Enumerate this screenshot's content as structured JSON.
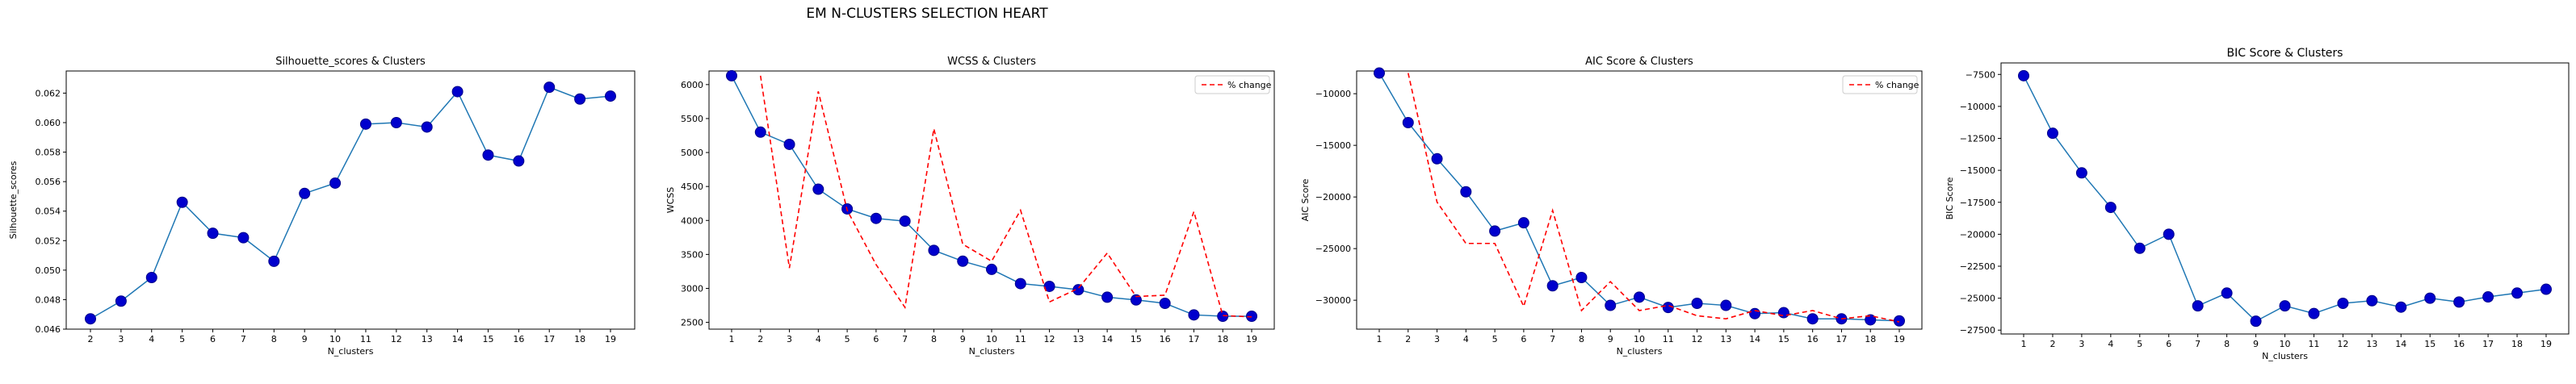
{
  "suptitle": "EM N-CLUSTERS SELECTION HEART",
  "colors": {
    "line": "#1f77b4",
    "marker": "#0000cd",
    "marker_edge": "#00008b",
    "pct": "#ff0000",
    "axis": "#000000"
  },
  "chart_data": [
    {
      "type": "line",
      "title": "Silhouette_scores & Clusters",
      "xlabel": "N_clusters",
      "ylabel": "Silhouette_scores",
      "x": [
        2,
        3,
        4,
        5,
        6,
        7,
        8,
        9,
        10,
        11,
        12,
        13,
        14,
        15,
        16,
        17,
        18,
        19
      ],
      "xticks": [
        "2",
        "3",
        "4",
        "5",
        "6",
        "7",
        "8",
        "9",
        "10",
        "11",
        "12",
        "13",
        "14",
        "15",
        "16",
        "17",
        "18",
        "19"
      ],
      "ylim": [
        0.046,
        0.0635
      ],
      "yticks": [
        "0.046",
        "0.048",
        "0.050",
        "0.052",
        "0.054",
        "0.056",
        "0.058",
        "0.060",
        "0.062"
      ],
      "ytick_values": [
        0.046,
        0.048,
        0.05,
        0.052,
        0.054,
        0.056,
        0.058,
        0.06,
        0.062
      ],
      "series": [
        {
          "values": [
            0.0467,
            0.0479,
            0.0495,
            0.0546,
            0.0525,
            0.0522,
            0.0506,
            0.0552,
            0.0559,
            0.0599,
            0.06,
            0.0597,
            0.0621,
            0.0578,
            0.0574,
            0.0624,
            0.0616,
            0.0618
          ]
        }
      ],
      "legend": null
    },
    {
      "type": "line",
      "title": "WCSS & Clusters",
      "xlabel": "N_clusters",
      "ylabel": "WCSS",
      "x": [
        1,
        2,
        3,
        4,
        5,
        6,
        7,
        8,
        9,
        10,
        11,
        12,
        13,
        14,
        15,
        16,
        17,
        18,
        19
      ],
      "xticks": [
        "1",
        "2",
        "3",
        "4",
        "5",
        "6",
        "7",
        "8",
        "9",
        "10",
        "11",
        "12",
        "13",
        "14",
        "15",
        "16",
        "17",
        "18",
        "19"
      ],
      "ylim": [
        2400,
        6200
      ],
      "yticks": [
        "2500",
        "3000",
        "3500",
        "4000",
        "4500",
        "5000",
        "5500",
        "6000"
      ],
      "ytick_values": [
        2500,
        3000,
        3500,
        4000,
        4500,
        5000,
        5500,
        6000
      ],
      "series": [
        {
          "values": [
            6130,
            5300,
            5120,
            4460,
            4170,
            4030,
            3990,
            3560,
            3400,
            3280,
            3070,
            3030,
            2980,
            2870,
            2830,
            2780,
            2610,
            2590,
            2590
          ]
        },
        {
          "name": "% change",
          "style": "dashed",
          "x": [
            2,
            3,
            4,
            5,
            6,
            7,
            8,
            9,
            10,
            11,
            12,
            13,
            14,
            15,
            16,
            17,
            18,
            19
          ],
          "values": [
            6130,
            3300,
            5900,
            4150,
            3350,
            2720,
            5350,
            3650,
            3400,
            4150,
            2800,
            3000,
            3520,
            2880,
            2900,
            4130,
            2600,
            2580
          ]
        }
      ],
      "legend": "top-right"
    },
    {
      "type": "line",
      "title": "AIC Score & Clusters",
      "xlabel": "N_clusters",
      "ylabel": "AIC Score",
      "x": [
        1,
        2,
        3,
        4,
        5,
        6,
        7,
        8,
        9,
        10,
        11,
        12,
        13,
        14,
        15,
        16,
        17,
        18,
        19
      ],
      "xticks": [
        "1",
        "2",
        "3",
        "4",
        "5",
        "6",
        "7",
        "8",
        "9",
        "10",
        "11",
        "12",
        "13",
        "14",
        "15",
        "16",
        "17",
        "18",
        "19"
      ],
      "ylim": [
        -32800,
        -7800
      ],
      "yticks": [
        "−30000",
        "−25000",
        "−20000",
        "−15000",
        "−10000"
      ],
      "ytick_values": [
        -30000,
        -25000,
        -20000,
        -15000,
        -10000
      ],
      "series": [
        {
          "values": [
            -8000,
            -12800,
            -16300,
            -19500,
            -23300,
            -22500,
            -28600,
            -27800,
            -30500,
            -29700,
            -30700,
            -30300,
            -30500,
            -31300,
            -31200,
            -31800,
            -31800,
            -31900,
            -32000
          ]
        },
        {
          "name": "% change",
          "style": "dashed",
          "x": [
            2,
            3,
            4,
            5,
            6,
            7,
            8,
            9,
            10,
            11,
            12,
            13,
            14,
            15,
            16,
            17,
            18,
            19
          ],
          "values": [
            -8000,
            -20500,
            -24500,
            -24500,
            -30600,
            -21300,
            -31000,
            -28200,
            -31000,
            -30500,
            -31500,
            -31800,
            -31000,
            -31500,
            -31000,
            -31800,
            -31500,
            -32100
          ]
        }
      ],
      "legend": "top-right"
    },
    {
      "type": "line",
      "title": "BIC Score & Clusters",
      "xlabel": "N_clusters",
      "ylabel": "BIC Score",
      "x": [
        1,
        2,
        3,
        4,
        5,
        6,
        7,
        8,
        9,
        10,
        11,
        12,
        13,
        14,
        15,
        16,
        17,
        18,
        19
      ],
      "xticks": [
        "1",
        "2",
        "3",
        "4",
        "5",
        "6",
        "7",
        "8",
        "9",
        "10",
        "11",
        "12",
        "13",
        "14",
        "15",
        "16",
        "17",
        "18",
        "19"
      ],
      "ylim": [
        -27800,
        -6600
      ],
      "yticks": [
        "−27500",
        "−25000",
        "−22500",
        "−20000",
        "−17500",
        "−15000",
        "−12500",
        "−10000",
        "−7500"
      ],
      "ytick_values": [
        -27500,
        -25000,
        -22500,
        -20000,
        -17500,
        -15000,
        -12500,
        -10000,
        -7500
      ],
      "series": [
        {
          "values": [
            -7600,
            -12100,
            -15200,
            -17900,
            -21100,
            -20000,
            -25600,
            -24600,
            -26800,
            -25600,
            -26200,
            -25400,
            -25200,
            -25700,
            -25000,
            -25300,
            -24900,
            -24600,
            -24300
          ]
        }
      ],
      "legend": null
    }
  ]
}
